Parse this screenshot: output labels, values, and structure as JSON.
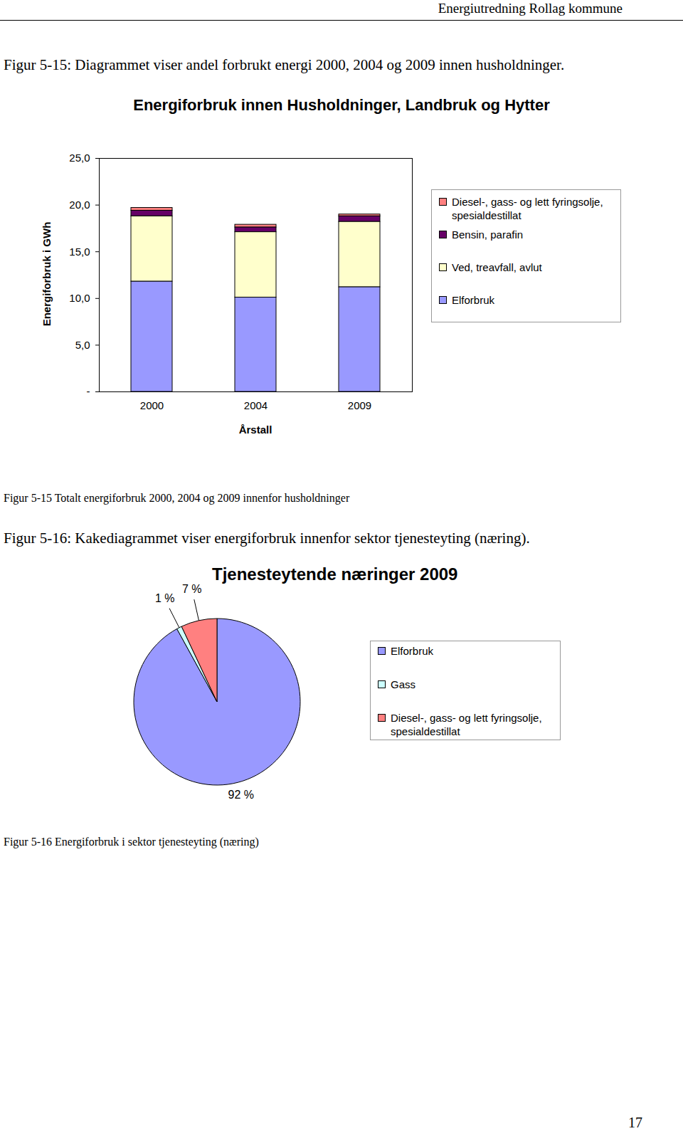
{
  "header": "Energiutredning Rollag kommune",
  "page_number": "17",
  "texts": {
    "fig15_heading": "Figur 5-15: Diagrammet viser andel forbrukt energi 2000, 2004 og 2009 innen husholdninger.",
    "fig15_caption": "Figur 5-15 Totalt energiforbruk 2000, 2004 og 2009 innenfor husholdninger",
    "fig16_heading": "Figur 5-16: Kakediagrammet viser energiforbruk innenfor sektor tjenesteyting (næring).",
    "fig16_caption": "Figur 5-16 Energiforbruk i sektor tjenesteyting (næring)"
  },
  "chart_data": [
    {
      "type": "bar",
      "stacked": true,
      "title": "Energiforbruk innen Husholdninger, Landbruk og Hytter",
      "x_label": "Årstall",
      "y_label": "Energiforbruk i GWh",
      "categories": [
        "2000",
        "2004",
        "2009"
      ],
      "series": [
        {
          "name": "Diesel-, gass- og lett fyringsolje, spesialdestillat",
          "color": "#ff8080",
          "values": [
            0.3,
            0.3,
            0.2
          ]
        },
        {
          "name": "Bensin, parafin",
          "color": "#660066",
          "values": [
            0.6,
            0.5,
            0.6
          ]
        },
        {
          "name": "Ved, treavfall, avlut",
          "color": "#ffffcc",
          "values": [
            7.0,
            7.0,
            7.0
          ]
        },
        {
          "name": "Elforbruk",
          "color": "#9999ff",
          "values": [
            11.8,
            10.1,
            11.2
          ]
        }
      ],
      "ylim": [
        0,
        25
      ],
      "yticks": [
        {
          "value": 0,
          "label": "-"
        },
        {
          "value": 5,
          "label": "5,0"
        },
        {
          "value": 10,
          "label": "10,0"
        },
        {
          "value": 15,
          "label": "15,0"
        },
        {
          "value": 20,
          "label": "20,0"
        },
        {
          "value": 25,
          "label": "25,0"
        }
      ],
      "grid": false,
      "legend": "right"
    },
    {
      "type": "pie",
      "title": "Tjenesteytende næringer 2009",
      "categories": [
        "Elforbruk",
        "Gass",
        "Diesel-, gass- og lett fyringsolje, spesialdestillat"
      ],
      "values": [
        92,
        1,
        7
      ],
      "value_labels": [
        "92 %",
        "1 %",
        "7 %"
      ],
      "colors": [
        "#9999ff",
        "#ccffff",
        "#ff8080"
      ],
      "data_labels": true,
      "legend": "right"
    }
  ]
}
